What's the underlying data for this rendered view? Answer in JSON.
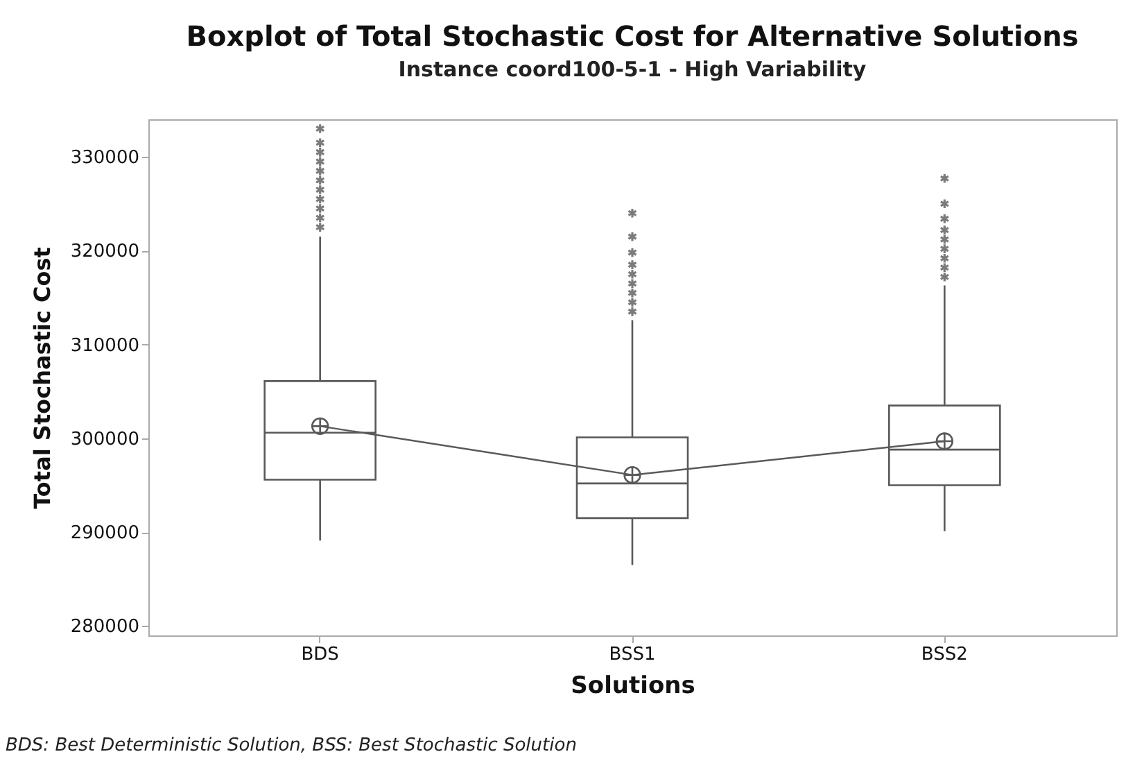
{
  "chart_data": {
    "type": "box",
    "title": "Boxplot of Total Stochastic Cost for Alternative Solutions",
    "subtitle": "Instance coord100-5-1 - High Variability",
    "xlabel": "Solutions",
    "ylabel": "Total Stochastic Cost",
    "categories": [
      "BDS",
      "BSS1",
      "BSS2"
    ],
    "boxes": [
      {
        "low": 289100,
        "q1": 295600,
        "median": 300600,
        "q3": 306100,
        "high": 321500,
        "mean": 301300,
        "outliers": [
          322500,
          323500,
          324500,
          325500,
          326500,
          327500,
          328500,
          329500,
          330500,
          331500,
          333000
        ]
      },
      {
        "low": 286500,
        "q1": 291500,
        "median": 295200,
        "q3": 300100,
        "high": 312600,
        "mean": 296100,
        "outliers": [
          313500,
          314500,
          315500,
          316500,
          317500,
          318500,
          319800,
          321500,
          324000
        ]
      },
      {
        "low": 290100,
        "q1": 295000,
        "median": 298800,
        "q3": 303500,
        "high": 316300,
        "mean": 299700,
        "outliers": [
          317200,
          318200,
          319200,
          320200,
          321200,
          322200,
          323400,
          325000,
          327700
        ]
      }
    ],
    "series": [
      {
        "type": "line",
        "color": "#595959",
        "values": [
          301300,
          296100,
          299700
        ]
      }
    ],
    "ylim": [
      279000,
      334000
    ],
    "yticks": [
      280000,
      290000,
      300000,
      310000,
      320000,
      330000
    ],
    "grid": false,
    "annotations": [
      "BDS: Best Deterministic Solution, BSS: Best Stochastic Solution"
    ]
  }
}
